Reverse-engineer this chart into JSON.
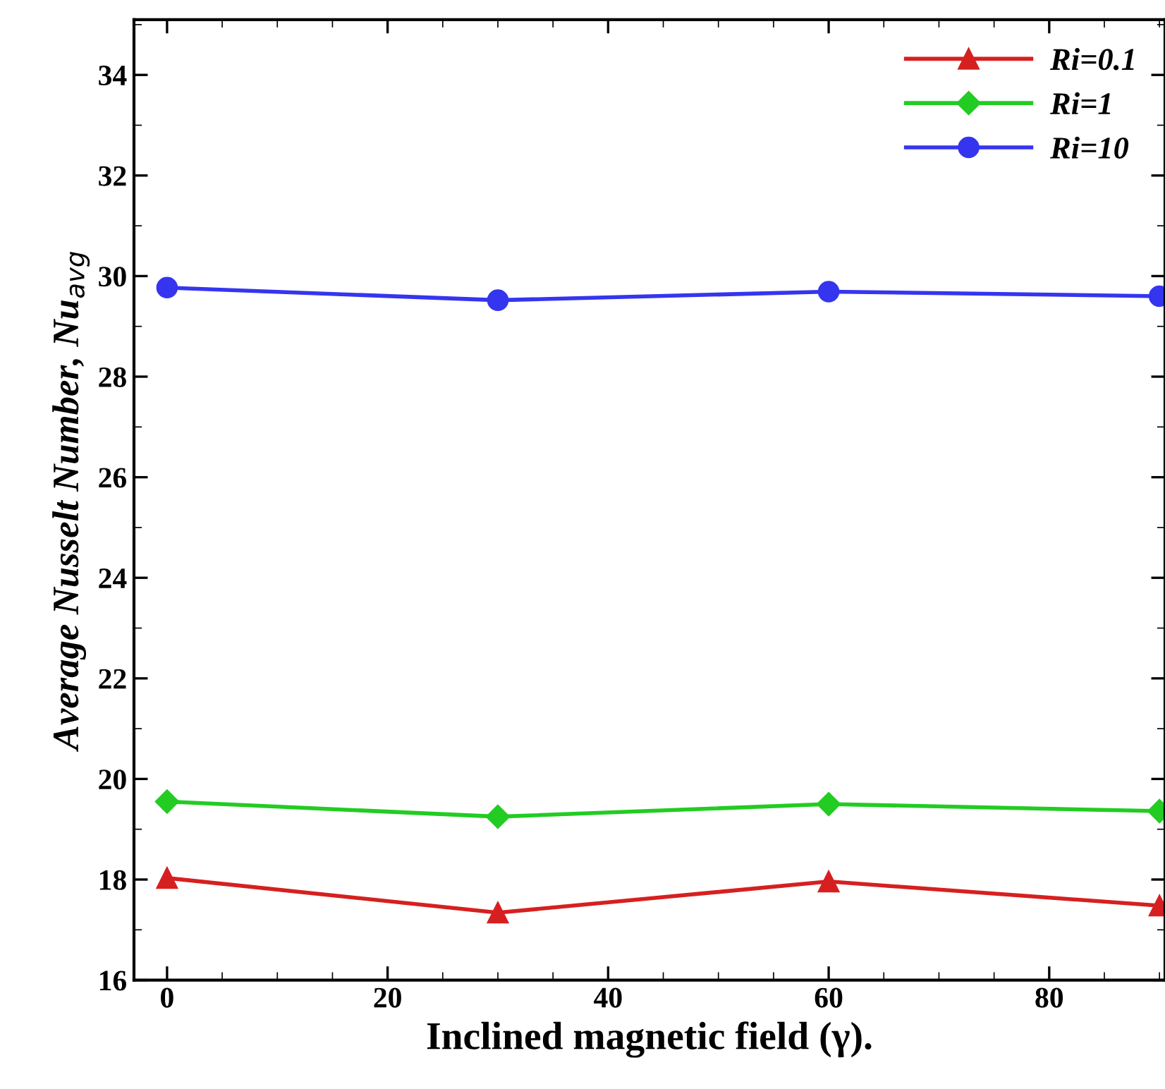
{
  "chart_data": {
    "type": "line",
    "xlabel": "Inclined magnetic field (γ).",
    "ylabel": "Average Nusselt Number, Nu$_{avg}$",
    "x": [
      0,
      30,
      60,
      90
    ],
    "xlim": [
      -3,
      90.5
    ],
    "xticks": [
      0,
      20,
      40,
      60,
      80
    ],
    "ylim": [
      16,
      35.1
    ],
    "yticks": [
      16,
      18,
      20,
      22,
      24,
      26,
      28,
      30,
      32,
      34
    ],
    "series": [
      {
        "name": "Ri=0.1",
        "color": "#d62020",
        "marker": "triangle",
        "values": [
          18.03,
          17.34,
          17.96,
          17.48
        ]
      },
      {
        "name": "Ri=1",
        "color": "#22cc22",
        "marker": "diamond",
        "values": [
          19.55,
          19.25,
          19.5,
          19.36
        ]
      },
      {
        "name": "Ri=10",
        "color": "#3535f0",
        "marker": "circle",
        "values": [
          29.77,
          29.52,
          29.69,
          29.6
        ]
      }
    ],
    "legend": "top right",
    "grid": false,
    "line_style": "solid"
  }
}
